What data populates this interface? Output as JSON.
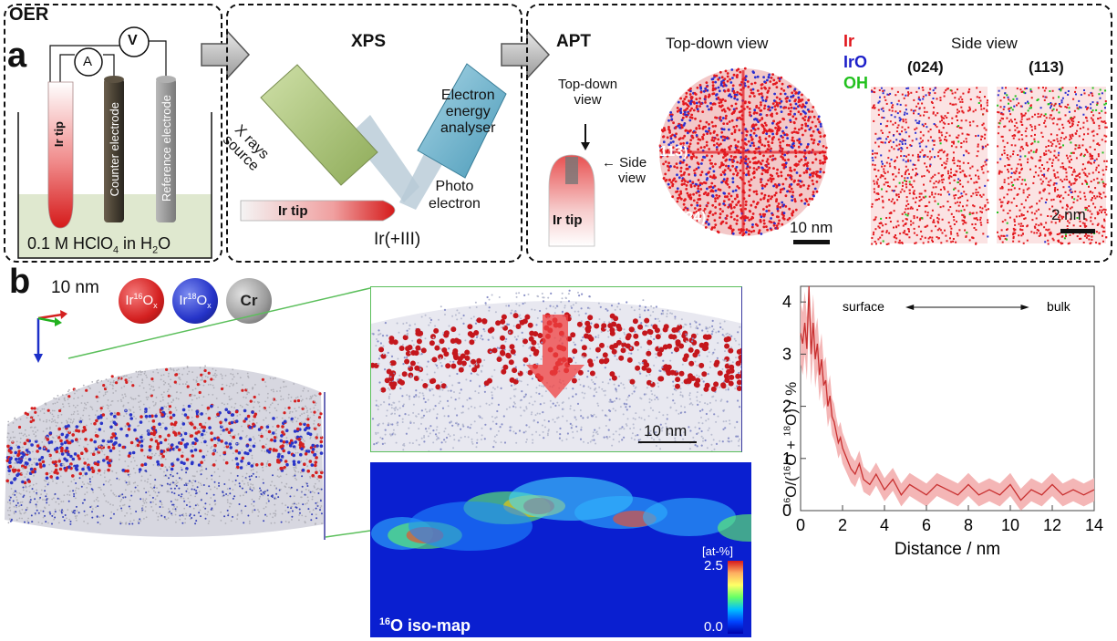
{
  "panel_a": {
    "oer": {
      "title": "OER",
      "letter": "a",
      "meter_v": "V",
      "meter_a": "A",
      "ir_tip": "Ir tip",
      "counter_electrode": "Counter electrode",
      "reference_electrode": "Reference electrode",
      "electrolyte": "0.1 M HClO",
      "electrolyte_sub": "4",
      "electrolyte_tail": " in H",
      "electrolyte_sub2": "2",
      "electrolyte_end": "O"
    },
    "xps": {
      "title": "XPS",
      "xray_line1": "X rays",
      "xray_line2": "source",
      "analyser_line1": "Electron",
      "analyser_line2": "energy",
      "analyser_line3": "analyser",
      "photo_line1": "Photo",
      "photo_line2": "electron",
      "ir_tip": "Ir tip",
      "oxidation": "Ir(+III)"
    },
    "apt": {
      "title": "APT",
      "topdown_line1": "Top-down",
      "topdown_line2": "view",
      "side_line1": "Side",
      "side_line2": "view",
      "ir_tip": "Ir tip",
      "topdown_title": "Top-down view",
      "label_113": "(113)",
      "label_024": "(024)",
      "scale_10nm": "10 nm",
      "legend": [
        {
          "label": "Ir",
          "color": "#e0151b"
        },
        {
          "label": "IrO",
          "color": "#1c1fc9"
        },
        {
          "label": "OH",
          "color": "#22c11f"
        }
      ],
      "side_title": "Side view",
      "side_024": "(024)",
      "side_113": "(113)",
      "scale_2nm": "2 nm"
    }
  },
  "panel_b": {
    "letter": "b",
    "scale_label": "10 nm",
    "spheres": [
      {
        "pre": "Ir",
        "sup": "16",
        "post": "O",
        "sub": "x",
        "color": "#d42020"
      },
      {
        "pre": "Ir",
        "sup": "18",
        "post": "O",
        "sub": "x",
        "color": "#2533c8"
      },
      {
        "pre": "Cr",
        "sup": "",
        "post": "",
        "sub": "",
        "color": "#8a8a8a"
      }
    ],
    "zoom_scale": "10 nm",
    "isomap": {
      "title_sup": "16",
      "title": "O iso-map",
      "colorbar_unit": "[at-%]",
      "colorbar_max": "2.5",
      "colorbar_min": "0.0"
    }
  },
  "chart_data": {
    "type": "line",
    "xlabel": "Distance / nm",
    "ylabel": "16O/(16O + 18O) / %",
    "xlim": [
      0,
      14
    ],
    "ylim": [
      0,
      4.3
    ],
    "xticks": [
      0,
      2,
      4,
      6,
      8,
      10,
      12,
      14
    ],
    "yticks": [
      0,
      1,
      2,
      3,
      4
    ],
    "annotation_left": "surface",
    "annotation_right": "bulk",
    "x": [
      0.0,
      0.1,
      0.2,
      0.3,
      0.4,
      0.5,
      0.6,
      0.7,
      0.8,
      0.9,
      1.0,
      1.1,
      1.2,
      1.3,
      1.4,
      1.5,
      1.6,
      1.7,
      1.8,
      1.9,
      2.0,
      2.2,
      2.4,
      2.6,
      2.8,
      3.0,
      3.3,
      3.6,
      4.0,
      4.4,
      4.8,
      5.2,
      5.6,
      6.0,
      6.5,
      7.0,
      7.5,
      8.0,
      8.5,
      9.0,
      9.5,
      10.0,
      10.5,
      11.0,
      11.5,
      12.0,
      12.5,
      13.0,
      13.5,
      14.0
    ],
    "values": [
      3.4,
      3.2,
      3.6,
      3.1,
      4.3,
      3.0,
      3.6,
      2.9,
      3.2,
      2.6,
      2.9,
      2.4,
      2.5,
      2.0,
      2.2,
      1.8,
      1.7,
      1.5,
      1.3,
      1.4,
      1.2,
      1.0,
      0.8,
      0.7,
      0.9,
      0.6,
      0.5,
      0.7,
      0.4,
      0.6,
      0.3,
      0.5,
      0.4,
      0.3,
      0.5,
      0.4,
      0.3,
      0.5,
      0.3,
      0.4,
      0.3,
      0.5,
      0.2,
      0.4,
      0.3,
      0.5,
      0.3,
      0.4,
      0.3,
      0.4
    ],
    "band_halfwidth": [
      0.6,
      0.6,
      0.6,
      0.6,
      0.6,
      0.6,
      0.55,
      0.55,
      0.5,
      0.5,
      0.5,
      0.45,
      0.45,
      0.4,
      0.4,
      0.35,
      0.35,
      0.3,
      0.3,
      0.3,
      0.3,
      0.28,
      0.26,
      0.25,
      0.25,
      0.24,
      0.22,
      0.22,
      0.22,
      0.22,
      0.22,
      0.22,
      0.22,
      0.22,
      0.22,
      0.22,
      0.22,
      0.22,
      0.22,
      0.22,
      0.22,
      0.22,
      0.22,
      0.22,
      0.22,
      0.22,
      0.22,
      0.22,
      0.22,
      0.22
    ],
    "line_color": "#c83030",
    "band_color": "#f4b6b6"
  }
}
